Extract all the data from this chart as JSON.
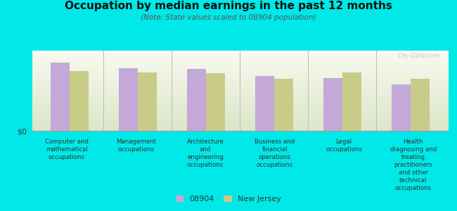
{
  "title": "Occupation by median earnings in the past 12 months",
  "subtitle": "(Note: State values scaled to 08904 population)",
  "categories": [
    "Computer and\nmathematical\noccupations",
    "Management\noccupations",
    "Architecture\nand\nengineering\noccupations",
    "Business and\nfinancial\noperations\noccupations",
    "Legal\noccupations",
    "Health\ndiagnosing and\ntreating\npractitioners\nand other\ntechnical\noccupations"
  ],
  "values_08904": [
    0.85,
    0.78,
    0.77,
    0.68,
    0.66,
    0.58
  ],
  "values_nj": [
    0.75,
    0.73,
    0.72,
    0.65,
    0.73,
    0.65
  ],
  "color_08904": "#c4a8d8",
  "color_nj": "#c8cc88",
  "background_color": "#00e8e8",
  "chart_bg_color": "#eef2e0",
  "ylabel": "$0",
  "watermark": "City-Data.com",
  "legend_08904": "08904",
  "legend_nj": "New Jersey",
  "bar_width": 0.28,
  "ylim": [
    0,
    1.0
  ],
  "title_fontsize": 11,
  "subtitle_fontsize": 7.5
}
